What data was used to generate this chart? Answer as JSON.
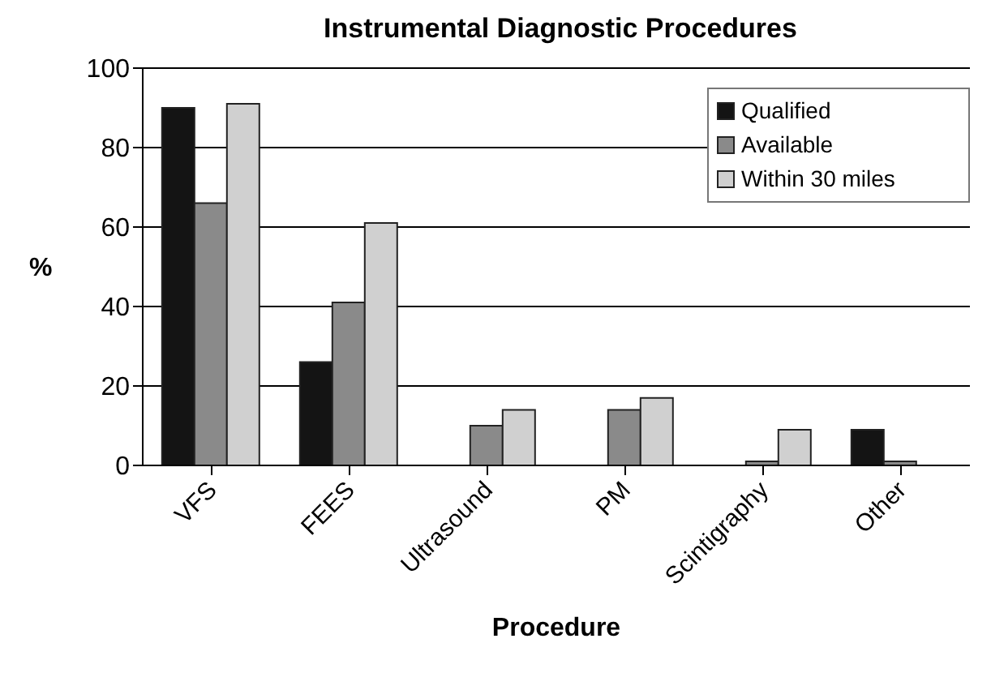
{
  "chart_data": {
    "type": "bar",
    "title": "Instrumental Diagnostic Procedures",
    "xlabel": "Procedure",
    "ylabel": "%",
    "categories": [
      "VFS",
      "FEES",
      "Ultrasound",
      "PM",
      "Scintigraphy",
      "Other"
    ],
    "series": [
      {
        "name": "Qualified",
        "color": "#141414",
        "values": [
          90,
          26,
          null,
          null,
          null,
          9
        ]
      },
      {
        "name": "Available",
        "color": "#8a8a8a",
        "values": [
          66,
          41,
          10,
          14,
          1,
          1
        ]
      },
      {
        "name": "Within 30 miles",
        "color": "#d0d0d0",
        "values": [
          91,
          61,
          14,
          17,
          9,
          null
        ]
      }
    ],
    "ylim": [
      0,
      100
    ],
    "yticks": [
      0,
      20,
      40,
      60,
      80,
      100
    ],
    "grid": "y",
    "legend": "top right"
  }
}
